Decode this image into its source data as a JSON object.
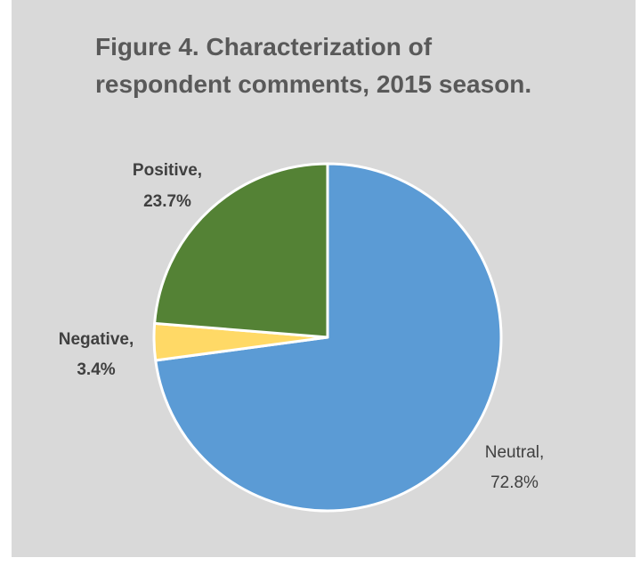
{
  "chart_data": {
    "type": "pie",
    "title_lines": [
      "Figure 4. Characterization of",
      "respondent comments, 2015 season."
    ],
    "start_angle_deg": 0,
    "direction": "clockwise",
    "slices": [
      {
        "name": "Neutral",
        "value": 72.8,
        "label": "Neutral,",
        "pct_label": "72.8%",
        "color": "#5b9bd5"
      },
      {
        "name": "Negative",
        "value": 3.4,
        "label": "Negative,",
        "pct_label": "3.4%",
        "color": "#ffd966"
      },
      {
        "name": "Positive",
        "value": 23.7,
        "label": "Positive,",
        "pct_label": "23.7%",
        "color": "#548235"
      }
    ],
    "legend": "none",
    "background": "#d9d9d9",
    "slice_border": "#ffffff"
  }
}
